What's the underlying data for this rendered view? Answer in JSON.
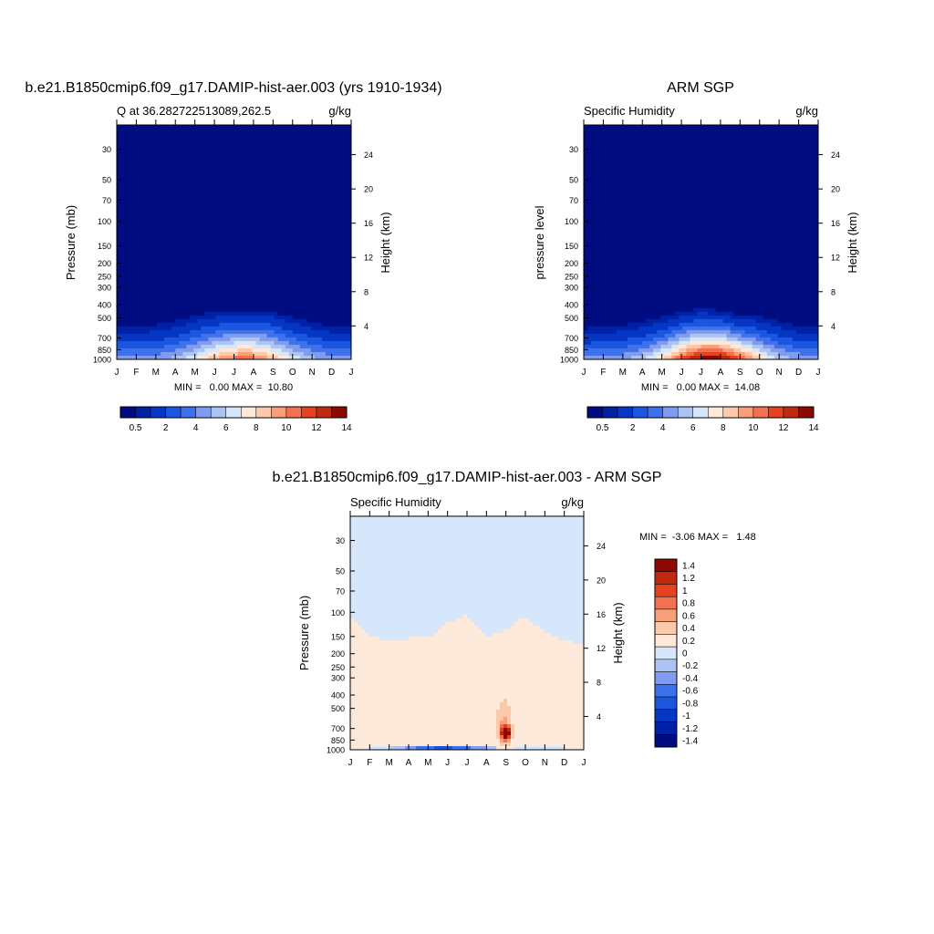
{
  "chart_data": [
    {
      "type": "heatmap",
      "title": "b.e21.B1850cmip6.f09_g17.DAMIP-hist-aer.003 (yrs 1910-1934)",
      "subtitle_left": "Q at 36.282722513089,262.5",
      "subtitle_right": "g/kg",
      "ylabel": "Pressure (mb)",
      "ylabel_right": "Height (km)",
      "x_ticks": [
        "J",
        "F",
        "M",
        "A",
        "M",
        "J",
        "J",
        "A",
        "S",
        "O",
        "N",
        "D",
        "J"
      ],
      "y_ticks": [
        "30",
        "50",
        "70",
        "100",
        "150",
        "200",
        "250",
        "300",
        "400",
        "500",
        "700",
        "850",
        "1000"
      ],
      "y_ticks_right": [
        "24",
        "20",
        "16",
        "12",
        "8",
        "4"
      ],
      "minmax": "MIN =   0.00 MAX =  10.80",
      "min": 0.0,
      "max": 10.8,
      "boundary_top_mb": [
        480,
        470,
        460,
        430,
        395,
        380,
        380,
        375,
        380,
        410,
        440,
        470,
        480
      ],
      "peak_value": 10.8,
      "peak_month": 6.5,
      "colorbar": {
        "orientation": "horizontal",
        "labels": [
          "0.5",
          "2",
          "4",
          "6",
          "8",
          "10",
          "12",
          "14"
        ],
        "levels": [
          0.5,
          1,
          2,
          3,
          4,
          5,
          6,
          7,
          8,
          9,
          10,
          11,
          12,
          13,
          14
        ]
      }
    },
    {
      "type": "heatmap",
      "title": "ARM SGP",
      "subtitle_left": "Specific Humidity",
      "subtitle_right": "g/kg",
      "ylabel": "pressure level",
      "ylabel_right": "Height (km)",
      "x_ticks": [
        "J",
        "F",
        "M",
        "A",
        "M",
        "J",
        "J",
        "A",
        "S",
        "O",
        "N",
        "D",
        "J"
      ],
      "y_ticks": [
        "30",
        "50",
        "70",
        "100",
        "150",
        "200",
        "250",
        "300",
        "400",
        "500",
        "700",
        "850",
        "1000"
      ],
      "y_ticks_right": [
        "24",
        "20",
        "16",
        "12",
        "8",
        "4"
      ],
      "minmax": "MIN =   0.00 MAX =  14.08",
      "min": 0.0,
      "max": 14.08,
      "boundary_top_mb": [
        490,
        480,
        465,
        445,
        420,
        390,
        375,
        385,
        420,
        410,
        440,
        475,
        490
      ],
      "peak_value": 14.08,
      "peak_month": 6.5,
      "colorbar": {
        "orientation": "horizontal",
        "labels": [
          "0.5",
          "2",
          "4",
          "6",
          "8",
          "10",
          "12",
          "14"
        ],
        "levels": [
          0.5,
          1,
          2,
          3,
          4,
          5,
          6,
          7,
          8,
          9,
          10,
          11,
          12,
          13,
          14
        ]
      }
    },
    {
      "type": "heatmap",
      "title": "b.e21.B1850cmip6.f09_g17.DAMIP-hist-aer.003 - ARM SGP",
      "subtitle_left": "Specific Humidity",
      "subtitle_right": "g/kg",
      "ylabel": "Pressure (mb)",
      "ylabel_right": "Height (km)",
      "x_ticks": [
        "J",
        "F",
        "M",
        "A",
        "M",
        "J",
        "J",
        "A",
        "S",
        "O",
        "N",
        "D",
        "J"
      ],
      "y_ticks": [
        "30",
        "50",
        "70",
        "100",
        "150",
        "200",
        "250",
        "300",
        "400",
        "500",
        "700",
        "850",
        "1000"
      ],
      "y_ticks_right": [
        "24",
        "20",
        "16",
        "12",
        "8",
        "4"
      ],
      "minmax": "MIN =  -3.06 MAX =   1.48",
      "min": -3.06,
      "max": 1.48,
      "zero_contour_mb": [
        110,
        150,
        160,
        155,
        155,
        120,
        105,
        150,
        135,
        105,
        140,
        160,
        170
      ],
      "colorbar": {
        "orientation": "vertical",
        "labels": [
          "1.4",
          "1.2",
          "1",
          "0.8",
          "0.6",
          "0.4",
          "0.2",
          "0",
          "-0.2",
          "-0.4",
          "-0.6",
          "-0.8",
          "-1",
          "-1.2",
          "-1.4"
        ],
        "levels": [
          1.4,
          1.2,
          1.0,
          0.8,
          0.6,
          0.4,
          0.2,
          0,
          -0.2,
          -0.4,
          -0.6,
          -0.8,
          -1.0,
          -1.2,
          -1.4
        ]
      }
    }
  ],
  "colors": {
    "seq": [
      "#000d80",
      "#0020a5",
      "#0536c4",
      "#1a56e0",
      "#3e72ec",
      "#7f9cf2",
      "#adc3f4",
      "#d6e6fb",
      "#fde9d9",
      "#fbc9ab",
      "#f7a07a",
      "#f27150",
      "#e8411f",
      "#be2a0f",
      "#8c0a00"
    ],
    "div": [
      "#8c0a00",
      "#be2a0f",
      "#e8411f",
      "#f27150",
      "#f7a07a",
      "#fbc9ab",
      "#fde9d9",
      "#d6e6fb",
      "#adc3f4",
      "#7f9cf2",
      "#3e72ec",
      "#1a56e0",
      "#0536c4",
      "#0020a5",
      "#000d80"
    ]
  }
}
